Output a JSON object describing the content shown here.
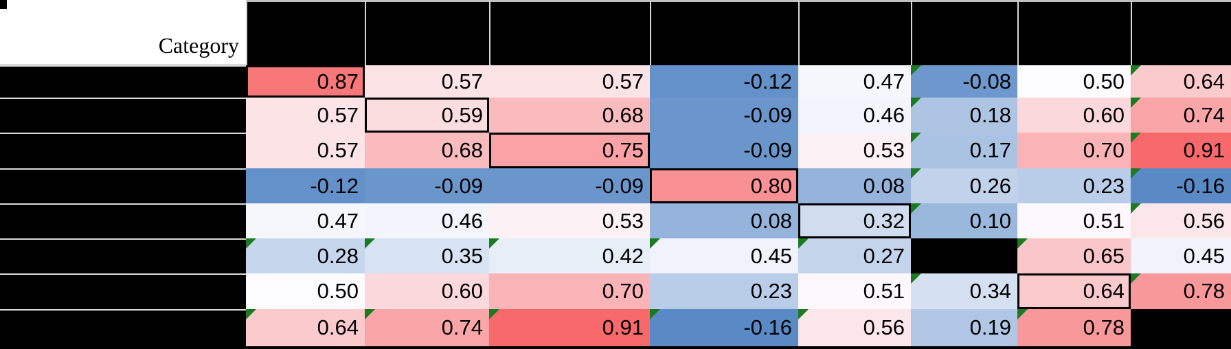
{
  "header": {
    "corner_label": "Category",
    "column_headers_redacted": true,
    "row_labels_redacted": true
  },
  "colors": {
    "redaction_black": "#000000",
    "corner_background": "#FFFFFF",
    "gridline_gray": "#D9D9D9",
    "top_gridline_gray": "#C0C0C0",
    "diagonal_outline": "#000000",
    "error_indicator_green": "#1B7A22",
    "text_color": "#000000",
    "scale_min_color": "#5A8AC6",
    "scale_mid_color": "#FCFCFF",
    "scale_max_color": "#F8696B"
  },
  "chart_data": {
    "type": "heatmap",
    "title": "",
    "corner_label": "Category",
    "row_labels_redacted": true,
    "column_labels_redacted": true,
    "n_rows": 8,
    "n_cols": 8,
    "value_format": "0.00",
    "matrix": [
      [
        0.87,
        0.57,
        0.57,
        -0.12,
        0.47,
        -0.08,
        0.5,
        0.64
      ],
      [
        0.57,
        0.59,
        0.68,
        -0.09,
        0.46,
        0.18,
        0.6,
        0.74
      ],
      [
        0.57,
        0.68,
        0.75,
        -0.09,
        0.53,
        0.17,
        0.7,
        0.91
      ],
      [
        -0.12,
        -0.09,
        -0.09,
        0.8,
        0.08,
        0.26,
        0.23,
        -0.16
      ],
      [
        0.47,
        0.46,
        0.53,
        0.08,
        0.32,
        0.1,
        0.51,
        0.56
      ],
      [
        0.28,
        0.35,
        0.42,
        0.45,
        0.27,
        null,
        0.65,
        0.45
      ],
      [
        0.5,
        0.6,
        0.7,
        0.23,
        0.51,
        0.34,
        0.64,
        0.78
      ],
      [
        0.64,
        0.74,
        0.91,
        -0.16,
        0.56,
        0.19,
        0.78,
        null
      ]
    ],
    "redacted_cells": [
      [
        6,
        6
      ],
      [
        8,
        8
      ]
    ],
    "outlined_diagonal_cells": [
      [
        1,
        1
      ],
      [
        2,
        2
      ],
      [
        3,
        3
      ],
      [
        4,
        4
      ],
      [
        5,
        5
      ],
      [
        7,
        7
      ]
    ],
    "error_indicator_cells": [
      [
        1,
        6
      ],
      [
        1,
        8
      ],
      [
        2,
        6
      ],
      [
        2,
        8
      ],
      [
        3,
        6
      ],
      [
        3,
        8
      ],
      [
        4,
        6
      ],
      [
        4,
        8
      ],
      [
        5,
        6
      ],
      [
        5,
        8
      ],
      [
        6,
        1
      ],
      [
        6,
        2
      ],
      [
        6,
        3
      ],
      [
        6,
        4
      ],
      [
        6,
        5
      ],
      [
        6,
        7
      ],
      [
        7,
        6
      ],
      [
        7,
        8
      ],
      [
        8,
        1
      ],
      [
        8,
        2
      ],
      [
        8,
        3
      ],
      [
        8,
        4
      ],
      [
        8,
        5
      ],
      [
        8,
        7
      ]
    ],
    "color_scale": {
      "min_value": -0.16,
      "mid_value": 0.5,
      "max_value": 0.91,
      "min_color": "#5A8AC6",
      "mid_color": "#FCFCFF",
      "max_color": "#F8696B"
    }
  }
}
